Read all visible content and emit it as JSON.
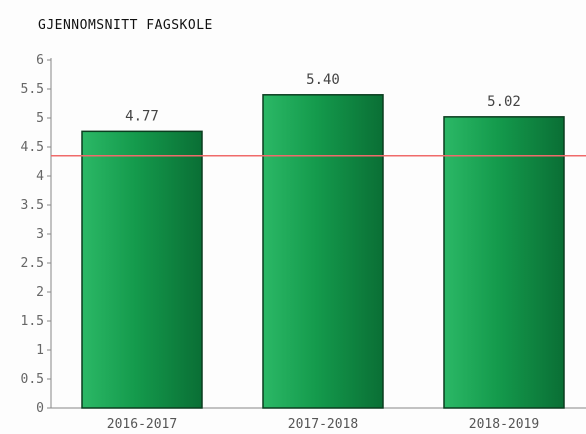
{
  "chart_data": {
    "type": "bar",
    "title": "GJENNOMSNITT FAGSKOLE",
    "categories": [
      "2016-2017",
      "2017-2018",
      "2018-2019"
    ],
    "values": [
      4.77,
      5.4,
      5.02
    ],
    "value_labels": [
      "4.77",
      "5.40",
      "5.02"
    ],
    "yticks": [
      "0",
      "0.5",
      "1",
      "1.5",
      "2",
      "2.5",
      "3",
      "3.5",
      "4",
      "4.5",
      "5",
      "5.5",
      "6"
    ],
    "ylim": [
      0,
      6
    ],
    "reference_line": 4.35,
    "grid": false,
    "legend": "none",
    "colors": {
      "bar_light": "#2bb866",
      "bar_mid": "#149a4c",
      "bar_dark": "#0a6f35",
      "bar_border": "#0b3d1f",
      "reference_line": "#f06a6a",
      "axis": "#888888"
    }
  }
}
